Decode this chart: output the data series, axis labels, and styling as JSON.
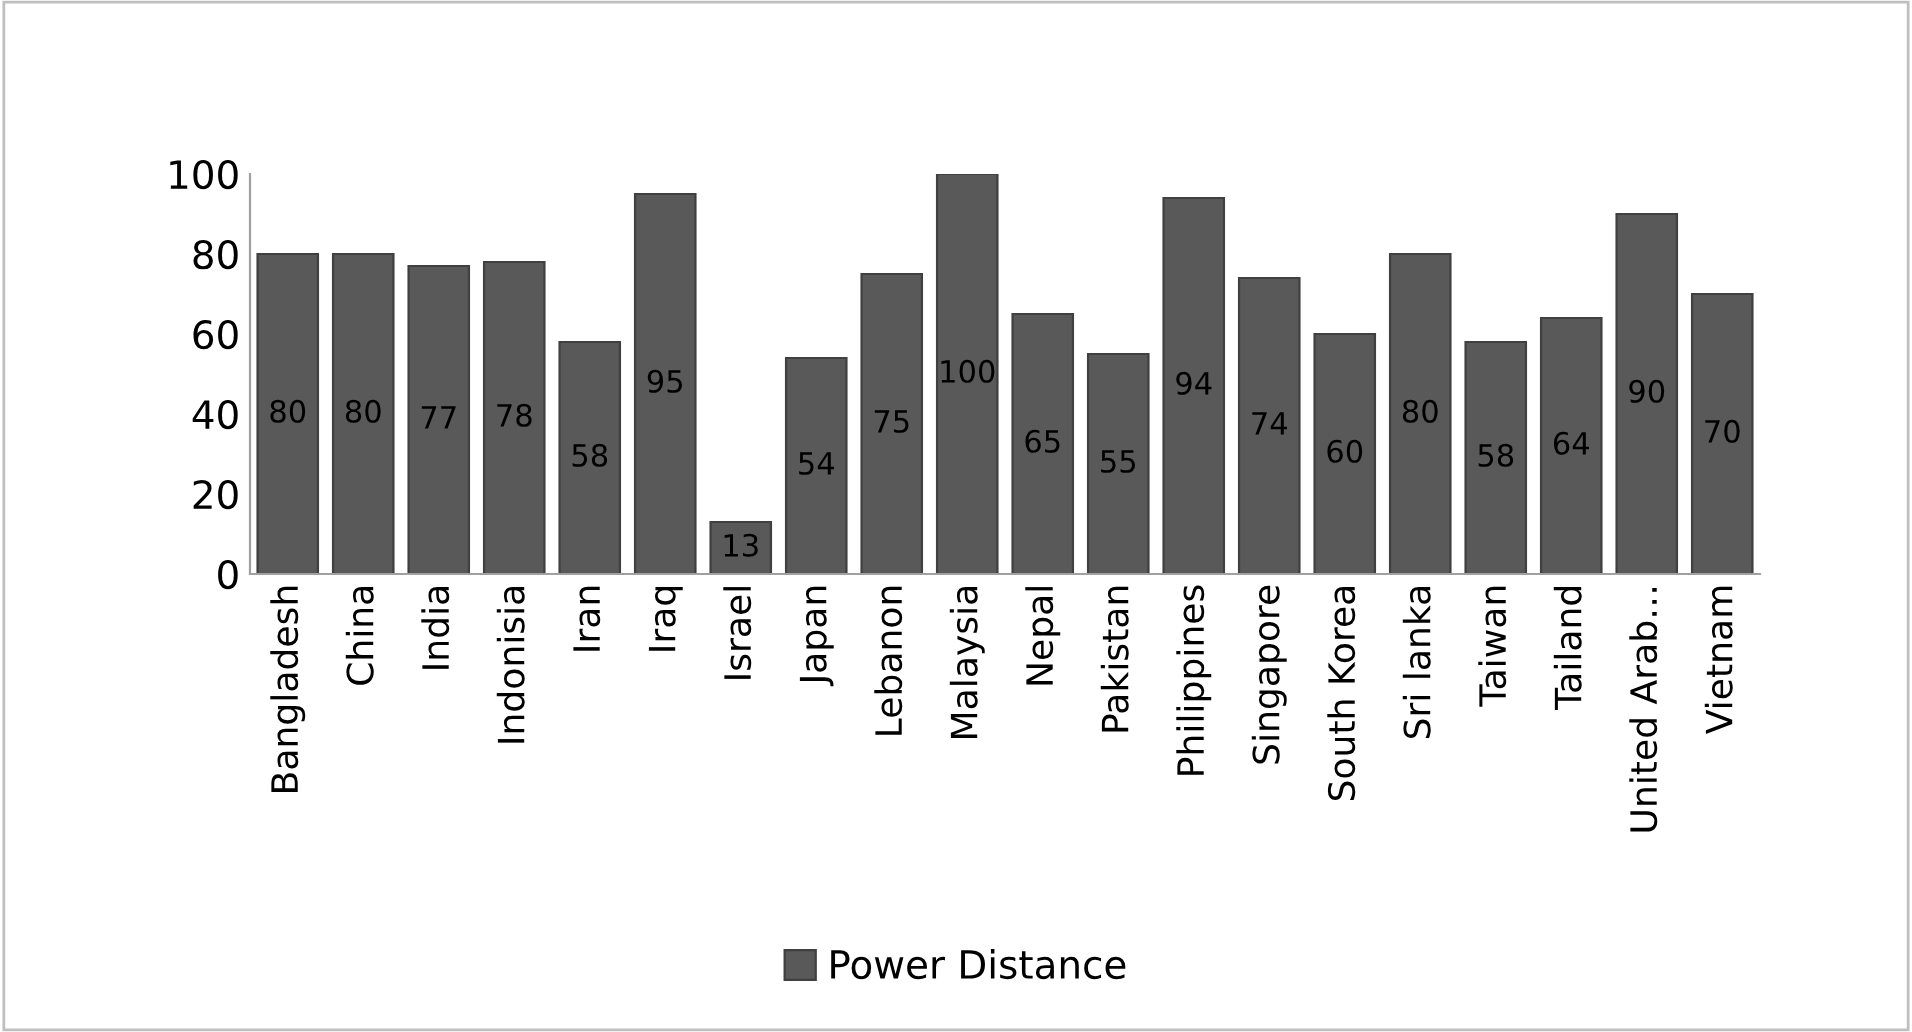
{
  "chart_data": {
    "type": "bar",
    "categories": [
      "Bangladesh",
      "China",
      "India",
      "Indonisia",
      "Iran",
      "Iraq",
      "Israel",
      "Japan",
      "Lebanon",
      "Malaysia",
      "Nepal",
      "Pakistan",
      "Philippines",
      "Singapore",
      "South Korea",
      "Sri lanka",
      "Taiwan",
      "Tailand",
      "United Arab…",
      "Vietnam"
    ],
    "series": [
      {
        "name": "Power Distance",
        "color": "#595959",
        "values": [
          80,
          80,
          77,
          78,
          58,
          95,
          13,
          54,
          75,
          100,
          65,
          55,
          94,
          74,
          60,
          80,
          58,
          64,
          90,
          70
        ]
      }
    ],
    "ylim": [
      0,
      100
    ],
    "yticks": [
      0,
      20,
      40,
      60,
      80,
      100
    ],
    "data_labels": true,
    "grid": false,
    "legend": "bottom"
  }
}
